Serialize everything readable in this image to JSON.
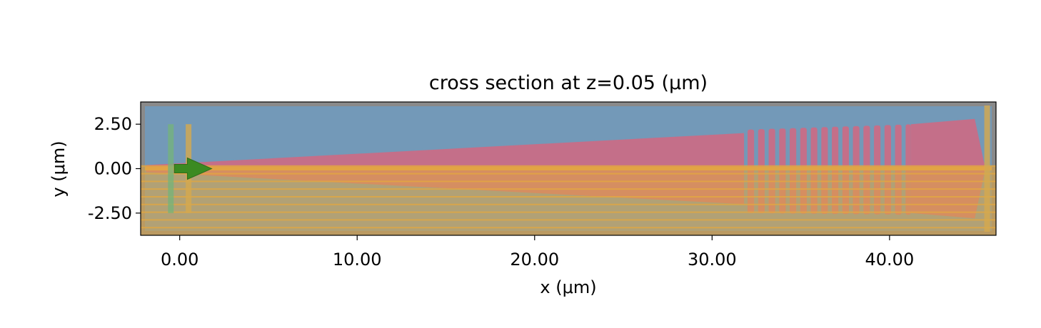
{
  "chart_data": {
    "type": "other",
    "title": "cross section at z=0.05 (μm)",
    "xlabel": "x (μm)",
    "ylabel": "y (μm)",
    "xlim": [
      -2.2,
      46.0
    ],
    "ylim": [
      -3.75,
      3.75
    ],
    "xticks": [
      0,
      10,
      20,
      30,
      40
    ],
    "xtick_labels": [
      "0.00",
      "10.00",
      "20.00",
      "30.00",
      "40.00"
    ],
    "yticks": [
      2.5,
      0,
      -2.5
    ],
    "ytick_labels": [
      "2.50",
      "0.00",
      "-2.50"
    ],
    "colors": {
      "background": "#7399b8",
      "frame": "#8a8a8a",
      "grating_structure": "#c46f89",
      "pml_overlay": "#e4a83f",
      "source_arrow": "#3b8a22",
      "source_plane": "#74b47a",
      "monitor_plane": "#d6a94e"
    },
    "structures": {
      "taper_polygon": [
        [
          -1.9,
          0.2
        ],
        [
          31.8,
          2.0
        ],
        [
          31.8,
          -2.0
        ],
        [
          -1.9,
          -0.2
        ]
      ],
      "grating_region": {
        "x_start": 32.0,
        "x_end": 41.2,
        "y_top": 2.2,
        "y_bottom": -2.5,
        "gap_count": 15
      },
      "fan_end_polygon": [
        [
          41.2,
          2.5
        ],
        [
          44.8,
          2.8
        ],
        [
          45.4,
          0.0
        ],
        [
          44.8,
          -2.8
        ],
        [
          41.2,
          -2.5
        ]
      ],
      "pml_band": {
        "y_top": 0.15,
        "y_bottom": -3.75
      },
      "source_plane_x": -0.5,
      "monitor_plane_x": 0.5,
      "right_monitor_x": 45.5,
      "plane_half_height": 2.5,
      "source_arrow": {
        "x_start": -0.3,
        "x_end": 1.8,
        "y": 0.0
      }
    }
  }
}
